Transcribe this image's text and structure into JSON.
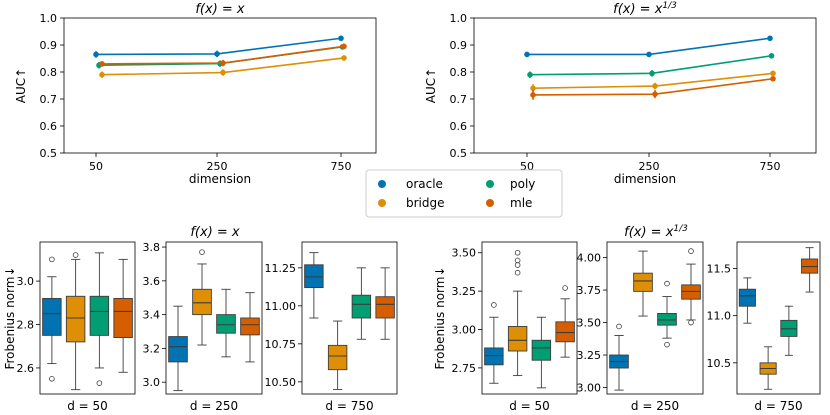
{
  "colors": {
    "oracle": "#0173b2",
    "bridge": "#de8f05",
    "poly": "#029e73",
    "mle": "#d55e00"
  },
  "chart_data": [
    {
      "type": "line",
      "title": "f(x) = x",
      "title_main": "f(x) = x",
      "xlabel": "dimension",
      "ylabel": "AUC↑",
      "ylim": [
        0.5,
        1.0
      ],
      "yticks": [
        "0.5",
        "0.6",
        "0.7",
        "0.8",
        "0.9",
        "1.0"
      ],
      "xticks": [
        "50",
        "250",
        "750"
      ],
      "series": [
        {
          "name": "oracle",
          "x": [
            50,
            250,
            750
          ],
          "y": [
            0.865,
            0.867,
            0.925
          ],
          "err": [
            0.012,
            0.012,
            0.006
          ]
        },
        {
          "name": "poly",
          "x": [
            50,
            250,
            750
          ],
          "y": [
            0.825,
            0.831,
            0.893
          ],
          "err": [
            0.012,
            0.012,
            0.006
          ]
        },
        {
          "name": "mle",
          "x": [
            50,
            250,
            750
          ],
          "y": [
            0.83,
            0.833,
            0.895
          ],
          "err": [
            0.01,
            0.012,
            0.006
          ]
        },
        {
          "name": "bridge",
          "x": [
            50,
            250,
            750
          ],
          "y": [
            0.79,
            0.798,
            0.852
          ],
          "err": [
            0.012,
            0.012,
            0.008
          ]
        }
      ]
    },
    {
      "type": "line",
      "title": "f(x) = x^{1/3}",
      "title_main": "f(x) = x",
      "title_sup": "1/3",
      "xlabel": "dimension",
      "ylabel": "AUC↑",
      "ylim": [
        0.5,
        1.0
      ],
      "yticks": [
        "0.5",
        "0.6",
        "0.7",
        "0.8",
        "0.9",
        "1.0"
      ],
      "xticks": [
        "50",
        "250",
        "750"
      ],
      "series": [
        {
          "name": "oracle",
          "x": [
            50,
            250,
            750
          ],
          "y": [
            0.865,
            0.865,
            0.925
          ],
          "err": [
            0.008,
            0.008,
            0.005
          ]
        },
        {
          "name": "poly",
          "x": [
            50,
            250,
            750
          ],
          "y": [
            0.79,
            0.795,
            0.86
          ],
          "err": [
            0.012,
            0.012,
            0.006
          ]
        },
        {
          "name": "bridge",
          "x": [
            50,
            250,
            750
          ],
          "y": [
            0.74,
            0.748,
            0.795
          ],
          "err": [
            0.015,
            0.012,
            0.008
          ]
        },
        {
          "name": "mle",
          "x": [
            50,
            250,
            750
          ],
          "y": [
            0.715,
            0.718,
            0.775
          ],
          "err": [
            0.018,
            0.015,
            0.008
          ]
        }
      ]
    },
    {
      "type": "box",
      "group_title": "f(x) = x",
      "group_title_main": "f(x) = x",
      "ylabel": "Frobenius norm↓",
      "panels": [
        {
          "xlabel": "d = 50",
          "ylim": [
            2.48,
            3.18
          ],
          "yticks": [
            2.6,
            2.8,
            3.0
          ],
          "ytick_labels": [
            "2.6",
            "2.8",
            "3.0"
          ],
          "boxes": [
            {
              "name": "oracle",
              "whislo": 2.62,
              "q1": 2.75,
              "med": 2.85,
              "q3": 2.92,
              "whishi": 3.02,
              "fliers": [
                3.1,
                2.55
              ]
            },
            {
              "name": "bridge",
              "whislo": 2.5,
              "q1": 2.72,
              "med": 2.83,
              "q3": 2.93,
              "whishi": 3.1,
              "fliers": [
                3.12
              ]
            },
            {
              "name": "poly",
              "whislo": 2.6,
              "q1": 2.75,
              "med": 2.86,
              "q3": 2.93,
              "whishi": 3.13,
              "fliers": [
                2.53
              ]
            },
            {
              "name": "mle",
              "whislo": 2.58,
              "q1": 2.74,
              "med": 2.86,
              "q3": 2.92,
              "whishi": 3.1,
              "fliers": []
            }
          ]
        },
        {
          "xlabel": "d = 250",
          "ylim": [
            2.93,
            3.83
          ],
          "yticks": [
            3.0,
            3.2,
            3.4,
            3.6,
            3.8
          ],
          "ytick_labels": [
            "3.0",
            "3.2",
            "3.4",
            "3.6",
            "3.8"
          ],
          "boxes": [
            {
              "name": "oracle",
              "whislo": 2.95,
              "q1": 3.12,
              "med": 3.21,
              "q3": 3.27,
              "whishi": 3.45,
              "fliers": []
            },
            {
              "name": "bridge",
              "whislo": 3.22,
              "q1": 3.4,
              "med": 3.47,
              "q3": 3.55,
              "whishi": 3.7,
              "fliers": [
                3.77
              ]
            },
            {
              "name": "poly",
              "whislo": 3.15,
              "q1": 3.29,
              "med": 3.34,
              "q3": 3.4,
              "whishi": 3.55,
              "fliers": []
            },
            {
              "name": "mle",
              "whislo": 3.12,
              "q1": 3.28,
              "med": 3.34,
              "q3": 3.38,
              "whishi": 3.53,
              "fliers": []
            }
          ]
        },
        {
          "xlabel": "d = 750",
          "ylim": [
            10.42,
            11.42
          ],
          "yticks": [
            10.5,
            10.75,
            11.0,
            11.25
          ],
          "ytick_labels": [
            "10.50",
            "10.75",
            "11.00",
            "11.25"
          ],
          "boxes": [
            {
              "name": "oracle",
              "whislo": 10.92,
              "q1": 11.12,
              "med": 11.19,
              "q3": 11.27,
              "whishi": 11.35,
              "fliers": []
            },
            {
              "name": "bridge",
              "whislo": 10.45,
              "q1": 10.58,
              "med": 10.67,
              "q3": 10.74,
              "whishi": 10.9,
              "fliers": []
            },
            {
              "name": "poly",
              "whislo": 10.78,
              "q1": 10.92,
              "med": 11.01,
              "q3": 11.07,
              "whishi": 11.25,
              "fliers": []
            },
            {
              "name": "mle",
              "whislo": 10.78,
              "q1": 10.92,
              "med": 11.01,
              "q3": 11.06,
              "whishi": 11.25,
              "fliers": []
            }
          ]
        }
      ]
    },
    {
      "type": "box",
      "group_title": "f(x) = x^{1/3}",
      "group_title_main": "f(x) = x",
      "group_title_sup": "1/3",
      "ylabel": "Frobenius norm↓",
      "panels": [
        {
          "xlabel": "d = 50",
          "ylim": [
            2.58,
            3.57
          ],
          "yticks": [
            2.75,
            3.0,
            3.25,
            3.5
          ],
          "ytick_labels": [
            "2.75",
            "3.00",
            "3.25",
            "3.50"
          ],
          "boxes": [
            {
              "name": "oracle",
              "whislo": 2.65,
              "q1": 2.77,
              "med": 2.83,
              "q3": 2.88,
              "whishi": 3.08,
              "fliers": [
                3.16
              ]
            },
            {
              "name": "bridge",
              "whislo": 2.7,
              "q1": 2.86,
              "med": 2.93,
              "q3": 3.02,
              "whishi": 3.25,
              "fliers": [
                3.37,
                3.42,
                3.45,
                3.5
              ]
            },
            {
              "name": "poly",
              "whislo": 2.62,
              "q1": 2.8,
              "med": 2.88,
              "q3": 2.93,
              "whishi": 3.08,
              "fliers": []
            },
            {
              "name": "mle",
              "whislo": 2.82,
              "q1": 2.92,
              "med": 2.98,
              "q3": 3.05,
              "whishi": 3.2,
              "fliers": [
                3.27
              ]
            }
          ]
        },
        {
          "xlabel": "d = 250",
          "ylim": [
            2.95,
            4.12
          ],
          "yticks": [
            3.0,
            3.25,
            3.5,
            3.75,
            4.0
          ],
          "ytick_labels": [
            "3.00",
            "3.25",
            "3.50",
            "3.75",
            "4.00"
          ],
          "boxes": [
            {
              "name": "oracle",
              "whislo": 2.98,
              "q1": 3.15,
              "med": 3.2,
              "q3": 3.25,
              "whishi": 3.4,
              "fliers": [
                3.47
              ]
            },
            {
              "name": "bridge",
              "whislo": 3.55,
              "q1": 3.74,
              "med": 3.82,
              "q3": 3.88,
              "whishi": 4.05,
              "fliers": []
            },
            {
              "name": "poly",
              "whislo": 3.38,
              "q1": 3.48,
              "med": 3.52,
              "q3": 3.57,
              "whishi": 3.7,
              "fliers": [
                3.33,
                3.8
              ]
            },
            {
              "name": "mle",
              "whislo": 3.52,
              "q1": 3.68,
              "med": 3.74,
              "q3": 3.79,
              "whishi": 3.95,
              "fliers": [
                3.5,
                4.05
              ]
            }
          ]
        },
        {
          "xlabel": "d = 750",
          "ylim": [
            10.17,
            11.78
          ],
          "yticks": [
            10.5,
            11.0,
            11.5
          ],
          "ytick_labels": [
            "10.5",
            "11.0",
            "11.5"
          ],
          "boxes": [
            {
              "name": "oracle",
              "whislo": 10.92,
              "q1": 11.1,
              "med": 11.21,
              "q3": 11.28,
              "whishi": 11.4,
              "fliers": []
            },
            {
              "name": "bridge",
              "whislo": 10.22,
              "q1": 10.38,
              "med": 10.44,
              "q3": 10.5,
              "whishi": 10.67,
              "fliers": []
            },
            {
              "name": "poly",
              "whislo": 10.58,
              "q1": 10.78,
              "med": 10.86,
              "q3": 10.95,
              "whishi": 11.1,
              "fliers": []
            },
            {
              "name": "mle",
              "whislo": 11.25,
              "q1": 11.45,
              "med": 11.52,
              "q3": 11.6,
              "whishi": 11.72,
              "fliers": []
            }
          ]
        }
      ]
    }
  ],
  "legend": [
    {
      "name": "oracle",
      "label": "oracle"
    },
    {
      "name": "bridge",
      "label": "bridge"
    },
    {
      "name": "poly",
      "label": "poly"
    },
    {
      "name": "mle",
      "label": "mle"
    }
  ]
}
